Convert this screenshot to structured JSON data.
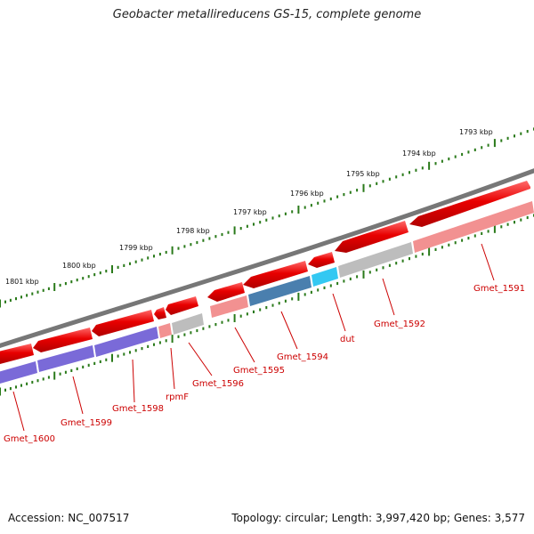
{
  "title": "Geobacter metallireducens GS-15, complete genome",
  "ticks": [
    {
      "label": "1793 kbp"
    },
    {
      "label": "1794 kbp"
    },
    {
      "label": "1795 kbp"
    },
    {
      "label": "1796 kbp"
    },
    {
      "label": "1797 kbp"
    },
    {
      "label": "1798 kbp"
    },
    {
      "label": "1799 kbp"
    },
    {
      "label": "1800 kbp"
    },
    {
      "label": "1801 kbp"
    }
  ],
  "genes": [
    {
      "name": "Gmet_1591",
      "color": "#e80000",
      "shade": "#f29191"
    },
    {
      "name": "Gmet_1592",
      "color": "#e80000",
      "shade": "#bdbdbd"
    },
    {
      "name": "dut",
      "color": "#e80000",
      "shade": "#33c8f2"
    },
    {
      "name": "Gmet_1594",
      "color": "#e80000",
      "shade": "#4a7fae"
    },
    {
      "name": "Gmet_1595",
      "color": "#e80000",
      "shade": "#f29191"
    },
    {
      "name": "Gmet_1596",
      "color": "#e80000",
      "shade": "#bdbdbd"
    },
    {
      "name": "rpmF",
      "color": "#e80000",
      "shade": "#f29191"
    },
    {
      "name": "Gmet_1598",
      "color": "#e80000",
      "shade": "#7a6ad8"
    },
    {
      "name": "Gmet_1599",
      "color": "#e80000",
      "shade": "#7a6ad8"
    },
    {
      "name": "Gmet_1600",
      "color": "#e80000",
      "shade": "#7a6ad8"
    }
  ],
  "colors": {
    "backbone": "#777777",
    "tick": "#2a7a1a",
    "label": "#cc0000"
  },
  "footer": {
    "accession": "Accession: NC_007517",
    "topology": "Topology: circular; Length: 3,997,420 bp; Genes: 3,577"
  }
}
